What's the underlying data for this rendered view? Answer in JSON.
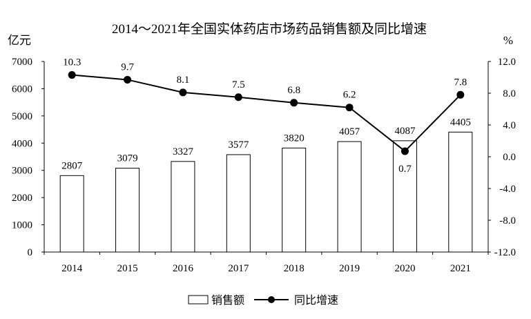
{
  "chart_data": {
    "type": "bar+line",
    "title": "2014～2021年全国实体药店市场药品销售额及同比增速",
    "categories": [
      "2014",
      "2015",
      "2016",
      "2017",
      "2018",
      "2019",
      "2020",
      "2021"
    ],
    "series": [
      {
        "name": "销售额",
        "type": "bar",
        "axis": "left",
        "values": [
          2807,
          3079,
          3327,
          3577,
          3820,
          4057,
          4087,
          4405
        ]
      },
      {
        "name": "同比增速",
        "type": "line",
        "axis": "right",
        "values": [
          10.3,
          9.7,
          8.1,
          7.5,
          6.8,
          6.2,
          0.7,
          7.8
        ]
      }
    ],
    "left_axis": {
      "label": "亿元",
      "ylim": [
        0,
        7000
      ],
      "ticks": [
        "0",
        "1000",
        "2000",
        "3000",
        "4000",
        "5000",
        "6000",
        "7000"
      ]
    },
    "right_axis": {
      "label": "%",
      "ylim": [
        -12,
        12
      ],
      "ticks": [
        "-12.0",
        "-8.0",
        "-4.0",
        "0.0",
        "4.0",
        "8.0",
        "12.0"
      ]
    },
    "line_labels": [
      "10.3",
      "9.7",
      "8.1",
      "7.5",
      "6.8",
      "6.2",
      "0.7",
      "7.8"
    ],
    "grid": false,
    "legend_position": "bottom",
    "colors": {
      "bar_fill": "#ffffff",
      "bar_stroke": "#000000",
      "line": "#000000"
    }
  }
}
